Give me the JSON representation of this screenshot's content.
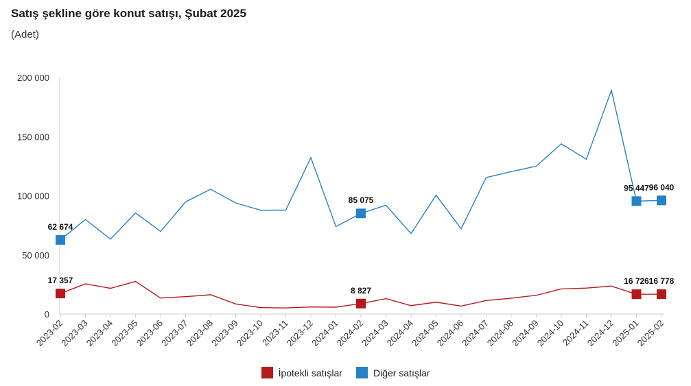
{
  "title": "Satış şekline göre konut satışı, Şubat 2025",
  "subtitle": "(Adet)",
  "legend": {
    "mortgage_label": "İpotekli satışlar",
    "other_label": "Diğer satışlar"
  },
  "colors": {
    "mortgage": "#b3191d",
    "other": "#2681c6",
    "axis": "#cccccc",
    "text": "#333333"
  },
  "chart_data": {
    "type": "line",
    "title": "Satış şekline göre konut satışı, Şubat 2025",
    "subtitle": "(Adet)",
    "xlabel": "",
    "ylabel": "",
    "ylim": [
      0,
      200000
    ],
    "yticks": [
      0,
      50000,
      100000,
      150000,
      200000
    ],
    "ytick_labels": [
      "0",
      "50 000",
      "100 000",
      "150 000",
      "200 000"
    ],
    "grid": false,
    "legend_position": "bottom",
    "categories": [
      "2023-02",
      "2023-03",
      "2023-04",
      "2023-05",
      "2023-06",
      "2023-07",
      "2023-08",
      "2023-09",
      "2023-10",
      "2023-11",
      "2023-12",
      "2024-01",
      "2024-02",
      "2024-03",
      "2024-04",
      "2024-05",
      "2024-06",
      "2024-07",
      "2024-08",
      "2024-09",
      "2024-10",
      "2024-11",
      "2024-12",
      "2025-01",
      "2025-02"
    ],
    "series": [
      {
        "name": "İpotekli satışlar",
        "color": "#b3191d",
        "values": [
          17357,
          25500,
          21700,
          27500,
          13500,
          14700,
          16300,
          8500,
          5400,
          5100,
          6000,
          5800,
          8827,
          13000,
          7100,
          10000,
          6700,
          11400,
          13400,
          15800,
          21200,
          21900,
          23600,
          16726,
          16778
        ],
        "labeled_points": [
          {
            "index": 0,
            "text": "17 357"
          },
          {
            "index": 12,
            "text": "8 827"
          },
          {
            "index": 23,
            "text": "16 726"
          },
          {
            "index": 24,
            "text": "16 778"
          }
        ]
      },
      {
        "name": "Diğer satışlar",
        "color": "#2681c6",
        "values": [
          62674,
          79900,
          63300,
          85500,
          69800,
          94800,
          105500,
          93900,
          87700,
          87900,
          132200,
          74000,
          85075,
          92000,
          68000,
          100500,
          72000,
          115400,
          120400,
          125000,
          143900,
          130900,
          189200,
          95447,
          96040
        ],
        "labeled_points": [
          {
            "index": 0,
            "text": "62 674"
          },
          {
            "index": 12,
            "text": "85 075"
          },
          {
            "index": 23,
            "text": "95 447"
          },
          {
            "index": 24,
            "text": "96 040"
          }
        ]
      }
    ]
  }
}
